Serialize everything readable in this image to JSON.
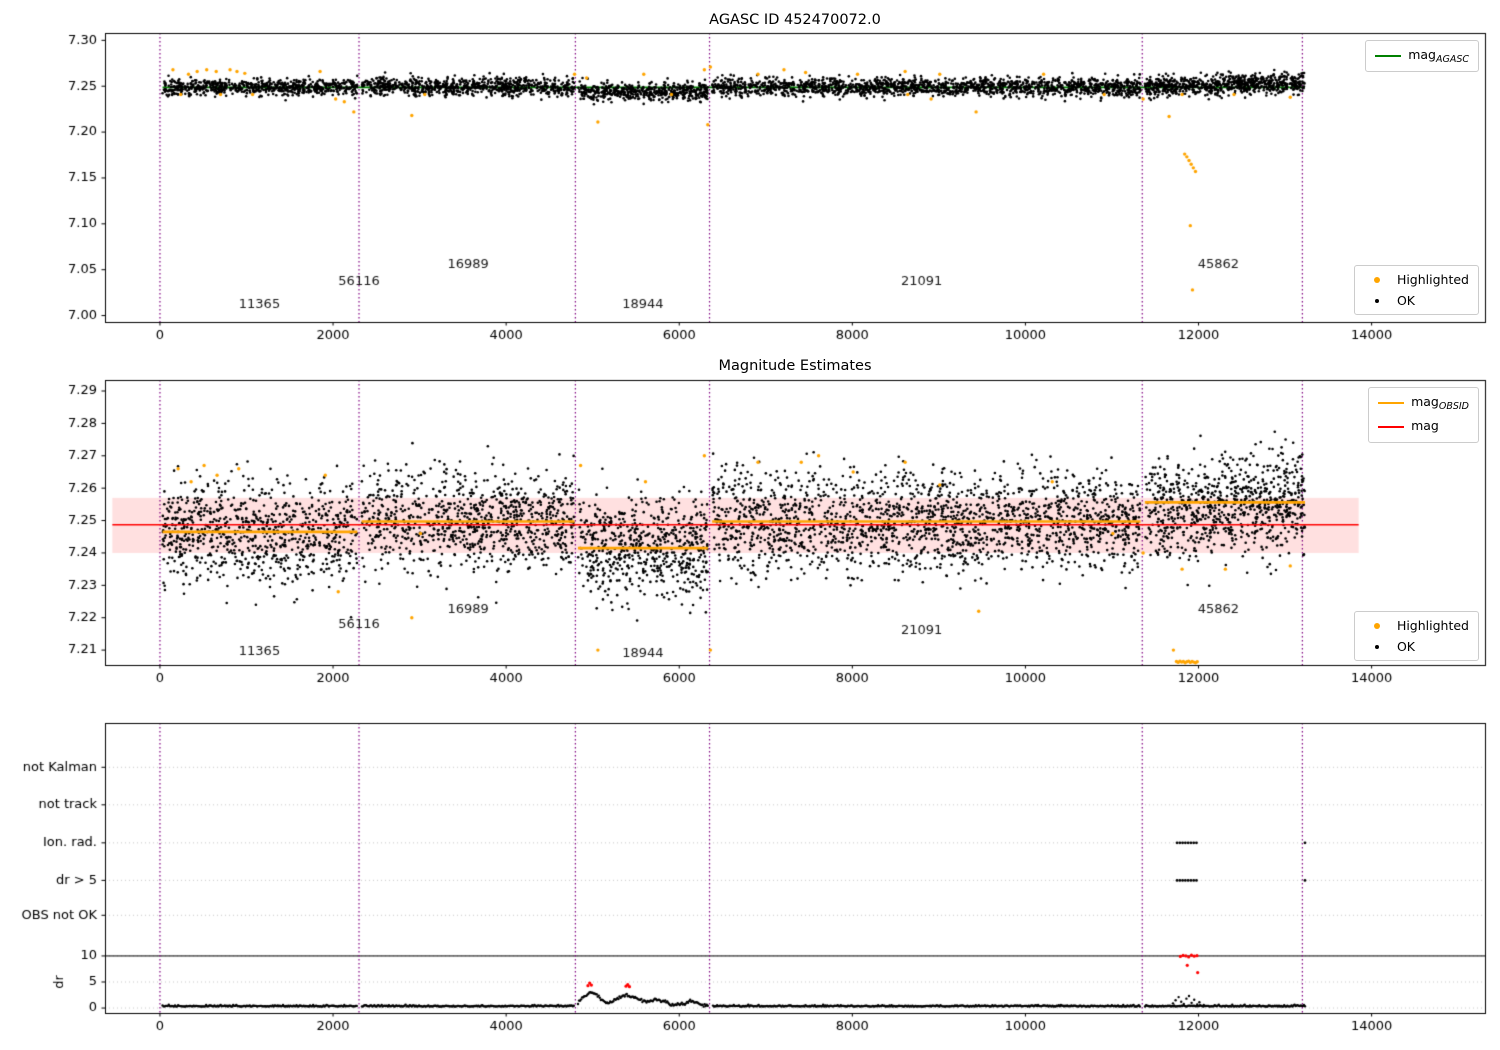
{
  "titles": {
    "chart1": "AGASC ID 452470072.0",
    "chart2": "Magnitude Estimates"
  },
  "legends": {
    "mag_agasc": {
      "main": "mag",
      "sub": "AGASC"
    },
    "mag_obsid": {
      "main": "mag",
      "sub": "OBSID"
    },
    "mag": {
      "main": "mag",
      "sub": ""
    },
    "highlighted": "Highlighted",
    "ok": "OK"
  },
  "colors": {
    "purple": "#800080",
    "orange": "#FFA500",
    "red": "#FF0000",
    "green": "#008000",
    "black": "#000000",
    "band": "rgba(255,0,0,0.12)",
    "grid": "#bbbbbb"
  },
  "chart_data": [
    {
      "type": "scatter",
      "title": "AGASC ID 452470072.0",
      "xlabel": "",
      "ylabel": "",
      "xlim": [
        -635,
        15310
      ],
      "ylim": [
        6.993,
        7.308
      ],
      "xticks": [
        0,
        2000,
        4000,
        6000,
        8000,
        10000,
        12000,
        14000
      ],
      "yticks": [
        7.0,
        7.05,
        7.1,
        7.15,
        7.2,
        7.25,
        7.3
      ],
      "vlines": [
        0,
        2300,
        4800,
        6350,
        11350,
        13200
      ],
      "hline": {
        "y": 7.2487,
        "x0": 30,
        "x1": 13230,
        "color": "#008000",
        "under": true,
        "label": "mag_AGASC"
      },
      "segments": [
        {
          "x0": 30,
          "x1": 2280,
          "n": 700,
          "mean": 7.2487,
          "sd": 0.0045,
          "trend": 0
        },
        {
          "x0": 2330,
          "x1": 4790,
          "n": 820,
          "mean": 7.2495,
          "sd": 0.005,
          "trend": 0
        },
        {
          "x0": 4830,
          "x1": 6330,
          "n": 520,
          "mean": 7.2438,
          "sd": 0.0048,
          "trend": 0
        },
        {
          "x0": 6380,
          "x1": 11330,
          "n": 1650,
          "mean": 7.249,
          "sd": 0.005,
          "trend": 0
        },
        {
          "x0": 11380,
          "x1": 13230,
          "n": 760,
          "mean": 7.2515,
          "sd": 0.0055,
          "trend": 0.004
        }
      ],
      "highlighted": [
        [
          150,
          7.268
        ],
        [
          240,
          7.241
        ],
        [
          330,
          7.263
        ],
        [
          430,
          7.266
        ],
        [
          540,
          7.268
        ],
        [
          650,
          7.266
        ],
        [
          700,
          7.241
        ],
        [
          810,
          7.268
        ],
        [
          890,
          7.266
        ],
        [
          980,
          7.264
        ],
        [
          1070,
          7.241
        ],
        [
          1850,
          7.266
        ],
        [
          2030,
          7.236
        ],
        [
          2130,
          7.233
        ],
        [
          2240,
          7.222
        ],
        [
          2910,
          7.218
        ],
        [
          3060,
          7.241
        ],
        [
          4790,
          7.263
        ],
        [
          4930,
          7.259
        ],
        [
          5060,
          7.211
        ],
        [
          5590,
          7.263
        ],
        [
          5910,
          7.241
        ],
        [
          6290,
          7.268
        ],
        [
          6330,
          7.208
        ],
        [
          6360,
          7.271
        ],
        [
          6910,
          7.263
        ],
        [
          7210,
          7.268
        ],
        [
          7460,
          7.265
        ],
        [
          8060,
          7.263
        ],
        [
          8610,
          7.266
        ],
        [
          8640,
          7.241
        ],
        [
          8910,
          7.236
        ],
        [
          9010,
          7.263
        ],
        [
          9430,
          7.222
        ],
        [
          10210,
          7.263
        ],
        [
          10910,
          7.241
        ],
        [
          11360,
          7.236
        ],
        [
          11660,
          7.217
        ],
        [
          11810,
          7.241
        ],
        [
          12410,
          7.241
        ],
        [
          13060,
          7.238
        ],
        [
          11840,
          7.176
        ],
        [
          11865,
          7.173
        ],
        [
          11890,
          7.169
        ],
        [
          11915,
          7.165
        ],
        [
          11940,
          7.161
        ],
        [
          11965,
          7.157
        ],
        [
          11905,
          7.098
        ],
        [
          11930,
          7.028
        ]
      ],
      "obsid_labels": [
        {
          "text": "11365",
          "x": 1150,
          "y": 7.012
        },
        {
          "text": "56116",
          "x": 2300,
          "y": 7.037
        },
        {
          "text": "16989",
          "x": 3560,
          "y": 7.056
        },
        {
          "text": "18944",
          "x": 5580,
          "y": 7.012
        },
        {
          "text": "21091",
          "x": 8800,
          "y": 7.037
        },
        {
          "text": "45862",
          "x": 12230,
          "y": 7.056
        }
      ]
    },
    {
      "type": "scatter",
      "title": "Magnitude Estimates",
      "xlabel": "",
      "ylabel": "",
      "xlim": [
        -635,
        15310
      ],
      "ylim": [
        7.2054,
        7.2934
      ],
      "xticks": [
        0,
        2000,
        4000,
        6000,
        8000,
        10000,
        12000,
        14000
      ],
      "yticks": [
        7.21,
        7.22,
        7.23,
        7.24,
        7.25,
        7.26,
        7.27,
        7.28,
        7.29
      ],
      "vlines": [
        0,
        2300,
        4800,
        6350,
        11350,
        13200
      ],
      "band": {
        "x0": -550,
        "x1": 13850,
        "y0": 7.24,
        "y1": 7.257
      },
      "hline": {
        "y": 7.2487,
        "x0": -550,
        "x1": 13850,
        "color": "#FF0000",
        "under": false,
        "label": "mag"
      },
      "obsid_segments": [
        [
          30,
          2280,
          7.2465
        ],
        [
          2330,
          4790,
          7.2497
        ],
        [
          4830,
          6330,
          7.2415
        ],
        [
          6380,
          11330,
          7.2497
        ],
        [
          11380,
          13230,
          7.2556
        ]
      ],
      "segments": [
        {
          "x0": 30,
          "x1": 2280,
          "n": 820,
          "mean": 7.2465,
          "sd": 0.0075,
          "trend": 0
        },
        {
          "x0": 2330,
          "x1": 4790,
          "n": 900,
          "mean": 7.2497,
          "sd": 0.008,
          "trend": 0
        },
        {
          "x0": 4830,
          "x1": 6330,
          "n": 620,
          "mean": 7.2415,
          "sd": 0.008,
          "trend": 0
        },
        {
          "x0": 6380,
          "x1": 11330,
          "n": 1850,
          "mean": 7.2495,
          "sd": 0.008,
          "trend": 0
        },
        {
          "x0": 11380,
          "x1": 13230,
          "n": 820,
          "mean": 7.2545,
          "sd": 0.008,
          "trend": 0.004
        }
      ],
      "highlighted": [
        [
          210,
          7.266
        ],
        [
          360,
          7.262
        ],
        [
          510,
          7.267
        ],
        [
          660,
          7.264
        ],
        [
          910,
          7.266
        ],
        [
          1910,
          7.264
        ],
        [
          2060,
          7.228
        ],
        [
          2910,
          7.22
        ],
        [
          3010,
          7.246
        ],
        [
          4860,
          7.267
        ],
        [
          5060,
          7.21
        ],
        [
          5610,
          7.262
        ],
        [
          6290,
          7.27
        ],
        [
          6360,
          7.21
        ],
        [
          6910,
          7.268
        ],
        [
          7410,
          7.268
        ],
        [
          7610,
          7.27
        ],
        [
          8010,
          7.265
        ],
        [
          8610,
          7.268
        ],
        [
          9010,
          7.261
        ],
        [
          9460,
          7.222
        ],
        [
          10310,
          7.262
        ],
        [
          11010,
          7.246
        ],
        [
          11360,
          7.24
        ],
        [
          11710,
          7.21
        ],
        [
          11810,
          7.235
        ],
        [
          12310,
          7.235
        ],
        [
          13060,
          7.236
        ],
        [
          11745,
          7.2065
        ],
        [
          11765,
          7.2062
        ],
        [
          11785,
          7.2066
        ],
        [
          11805,
          7.2063
        ],
        [
          11825,
          7.2065
        ],
        [
          11845,
          7.2061
        ],
        [
          11865,
          7.2064
        ],
        [
          11885,
          7.2066
        ],
        [
          11905,
          7.2062
        ],
        [
          11925,
          7.2065
        ],
        [
          11945,
          7.2063
        ],
        [
          11965,
          7.2061
        ],
        [
          11985,
          7.2064
        ]
      ],
      "obsid_labels": [
        {
          "text": "11365",
          "x": 1150,
          "y": 7.2095
        },
        {
          "text": "56116",
          "x": 2300,
          "y": 7.218
        },
        {
          "text": "16989",
          "x": 3560,
          "y": 7.2225
        },
        {
          "text": "18944",
          "x": 5580,
          "y": 7.209
        },
        {
          "text": "21091",
          "x": 8800,
          "y": 7.216
        },
        {
          "text": "45862",
          "x": 12230,
          "y": 7.2225
        }
      ]
    },
    {
      "type": "flags",
      "title": "",
      "xlabel": "",
      "ylabel": "dr",
      "xlim": [
        -635,
        15310
      ],
      "ylim": [
        -0.95,
        54.7
      ],
      "xticks": [
        0,
        2000,
        4000,
        6000,
        8000,
        10000,
        12000,
        14000
      ],
      "dr_ticks": [
        10,
        5,
        0
      ],
      "categories": [
        {
          "label": "not Kalman",
          "v": 46.2
        },
        {
          "label": "not track",
          "v": 39.0
        },
        {
          "label": "Ion. rad.",
          "v": 31.7
        },
        {
          "label": "dr > 5",
          "v": 24.5
        },
        {
          "label": "OBS not OK",
          "v": 17.8
        }
      ],
      "threshold": 10,
      "vlines": [
        0,
        2300,
        4800,
        6350,
        11350,
        13200
      ],
      "trace": {
        "x0": 30,
        "x1": 13230,
        "step": 12,
        "base": 0.28,
        "noise": 0.14,
        "bump_range": [
          4830,
          6330
        ],
        "bumps": [
          {
            "c": 4980,
            "a": 2.6,
            "w": 95
          },
          {
            "c": 5400,
            "a": 2.0,
            "w": 130
          },
          {
            "c": 5750,
            "a": 1.1,
            "w": 95
          },
          {
            "c": 6150,
            "a": 0.8,
            "w": 85
          }
        ],
        "gaps": [
          [
            2280,
            2330
          ],
          [
            4790,
            4830
          ],
          [
            6330,
            6380
          ],
          [
            11330,
            11380
          ]
        ]
      },
      "extra_black": [
        [
          11705,
          0.9
        ],
        [
          11735,
          1.5
        ],
        [
          11770,
          2.1
        ],
        [
          11800,
          1.2
        ],
        [
          11830,
          0.8
        ],
        [
          11860,
          1.8
        ],
        [
          11890,
          2.3
        ],
        [
          11920,
          1.0
        ],
        [
          11950,
          1.6
        ],
        [
          11985,
          0.7
        ],
        [
          12010,
          1.1
        ],
        [
          12060,
          0.6
        ]
      ],
      "red_points": [
        [
          4945,
          4.3
        ],
        [
          4965,
          4.8
        ],
        [
          4985,
          4.4
        ],
        [
          5385,
          4.2
        ],
        [
          5405,
          4.5
        ],
        [
          5425,
          4.1
        ],
        [
          11790,
          9.9
        ],
        [
          11822,
          10.1
        ],
        [
          11854,
          10.0
        ],
        [
          11886,
          9.8
        ],
        [
          11918,
          10.15
        ],
        [
          11950,
          9.95
        ],
        [
          11982,
          10.05
        ],
        [
          11870,
          8.2
        ],
        [
          11990,
          6.8
        ]
      ],
      "flag_dots": [
        {
          "cat": 2,
          "xs": [
            11752,
            11784,
            11816,
            11848,
            11880,
            11912,
            11944,
            11976,
            13230
          ]
        },
        {
          "cat": 3,
          "xs": [
            11752,
            11784,
            11816,
            11848,
            11880,
            11912,
            11944,
            11976,
            13230
          ]
        }
      ]
    }
  ]
}
